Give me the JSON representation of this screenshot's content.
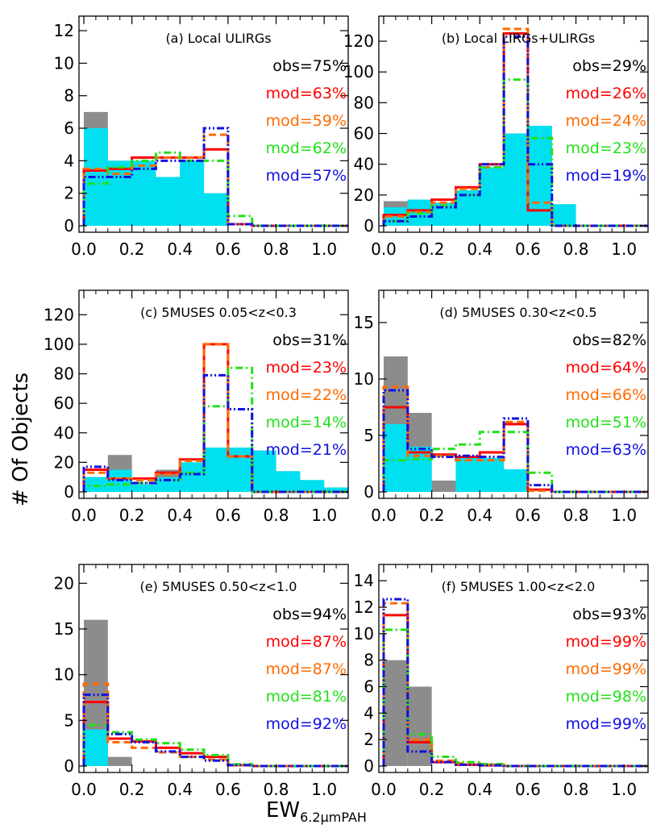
{
  "figure": {
    "ylabel": "# Of Objects",
    "xlabel_main": "EW",
    "xlabel_sub": "6.2μmPAH"
  },
  "colors": {
    "obs": "#8c8c8c",
    "sub": "#00e0f0",
    "red": "#ff0000",
    "orange": "#ff6a00",
    "green": "#22e01a",
    "blue": "#1010e0",
    "text": "#000000"
  },
  "chart_data": [
    {
      "type": "bar",
      "title": "(a) Local ULIRGs",
      "xlim": [
        0,
        1.1
      ],
      "ylim": [
        0,
        12.3
      ],
      "xticks": [
        0.0,
        0.2,
        0.4,
        0.6,
        0.8,
        1.0
      ],
      "xtick_labels": [
        "0.0",
        "0.2",
        "0.4",
        "0.6",
        "0.8",
        "1.0"
      ],
      "yticks": [
        0,
        2,
        4,
        6,
        8,
        10,
        12
      ],
      "ytick_labels": [
        "0",
        "2",
        "4",
        "6",
        "8",
        "10",
        "12"
      ],
      "bin_edges": [
        0.0,
        0.1,
        0.2,
        0.3,
        0.4,
        0.5,
        0.6,
        0.7,
        0.8,
        0.9,
        1.0,
        1.1
      ],
      "observed": [
        7,
        4,
        4,
        3,
        4,
        2,
        0,
        0,
        0,
        0,
        0
      ],
      "observed_subset": [
        6,
        4,
        4,
        3,
        4,
        2,
        0,
        0,
        0,
        0,
        0
      ],
      "models": [
        {
          "label": "mod=63%",
          "color": "red",
          "values": [
            3.4,
            3.5,
            4.2,
            4.2,
            4.2,
            4.7,
            0.1,
            0,
            0,
            0,
            0
          ]
        },
        {
          "label": "mod=59%",
          "color": "orange",
          "values": [
            3.5,
            3.2,
            3.7,
            4.2,
            4.2,
            5.6,
            0.1,
            0,
            0,
            0,
            0
          ]
        },
        {
          "label": "mod=62%",
          "color": "green",
          "values": [
            2.6,
            3.6,
            4.0,
            4.5,
            4.0,
            4.0,
            0.6,
            0,
            0,
            0,
            0
          ]
        },
        {
          "label": "mod=57%",
          "color": "blue",
          "values": [
            3.0,
            3.0,
            3.5,
            4.0,
            4.0,
            6.0,
            0.1,
            0,
            0,
            0,
            0
          ]
        }
      ],
      "obs_label": "obs=75%"
    },
    {
      "type": "bar",
      "title": "(b) Local LIRGs+ULIRGs",
      "xlim": [
        0,
        1.1
      ],
      "ylim": [
        0,
        130
      ],
      "xticks": [
        0.0,
        0.2,
        0.4,
        0.6,
        0.8,
        1.0
      ],
      "xtick_labels": [
        "0.0",
        "0.2",
        "0.4",
        "0.6",
        "0.8",
        "1.0"
      ],
      "yticks": [
        0,
        20,
        40,
        60,
        80,
        100,
        120
      ],
      "ytick_labels": [
        "0",
        "20",
        "40",
        "60",
        "80",
        "100",
        "120"
      ],
      "bin_edges": [
        0.0,
        0.1,
        0.2,
        0.3,
        0.4,
        0.5,
        0.6,
        0.7,
        0.8,
        0.9,
        1.0,
        1.1
      ],
      "observed": [
        16,
        17,
        15,
        23,
        38,
        60,
        65,
        14,
        0,
        0,
        0
      ],
      "observed_subset": [
        12,
        17,
        15,
        23,
        38,
        60,
        65,
        14,
        0,
        0,
        0
      ],
      "models": [
        {
          "label": "mod=26%",
          "color": "red",
          "values": [
            7,
            10,
            17,
            25,
            40,
            125,
            10,
            0,
            0,
            0,
            0
          ]
        },
        {
          "label": "mod=24%",
          "color": "orange",
          "values": [
            6,
            9,
            15,
            24,
            38,
            128,
            15,
            0,
            0,
            0,
            0
          ]
        },
        {
          "label": "mod=23%",
          "color": "green",
          "values": [
            3,
            8,
            13,
            20,
            38,
            95,
            57,
            0,
            0,
            0,
            0
          ]
        },
        {
          "label": "mod=19%",
          "color": "blue",
          "values": [
            3,
            6,
            12,
            20,
            40,
            123,
            40,
            0,
            0,
            0,
            0
          ]
        }
      ],
      "obs_label": "obs=29%"
    },
    {
      "type": "bar",
      "title": "(c) 5MUSES 0.05<z<0.3",
      "xlim": [
        0,
        1.1
      ],
      "ylim": [
        0,
        130
      ],
      "xticks": [
        0.0,
        0.2,
        0.4,
        0.6,
        0.8,
        1.0
      ],
      "xtick_labels": [
        "0.0",
        "0.2",
        "0.4",
        "0.6",
        "0.8",
        "1.0"
      ],
      "yticks": [
        0,
        20,
        40,
        60,
        80,
        100,
        120
      ],
      "ytick_labels": [
        "0",
        "20",
        "40",
        "60",
        "80",
        "100",
        "120"
      ],
      "bin_edges": [
        0.0,
        0.1,
        0.2,
        0.3,
        0.4,
        0.5,
        0.6,
        0.7,
        0.8,
        0.9,
        1.0,
        1.1
      ],
      "observed": [
        10,
        25,
        5,
        15,
        20,
        30,
        30,
        28,
        14,
        8,
        3
      ],
      "observed_subset": [
        10,
        15,
        5,
        10,
        20,
        30,
        30,
        28,
        14,
        8,
        3
      ],
      "models": [
        {
          "label": "mod=23%",
          "color": "red",
          "values": [
            15,
            9,
            9,
            13,
            22,
            100,
            24,
            0,
            0,
            0,
            0
          ]
        },
        {
          "label": "mod=22%",
          "color": "orange",
          "values": [
            13,
            9,
            8,
            12,
            21,
            100,
            24,
            0,
            0,
            0,
            0
          ]
        },
        {
          "label": "mod=14%",
          "color": "green",
          "values": [
            4,
            5,
            6,
            8,
            13,
            58,
            84,
            0,
            0,
            0,
            0
          ]
        },
        {
          "label": "mod=21%",
          "color": "blue",
          "values": [
            17,
            8,
            6,
            8,
            12,
            79,
            56,
            0,
            0,
            0,
            0
          ]
        }
      ],
      "obs_label": "obs=31%"
    },
    {
      "type": "bar",
      "title": "(d) 5MUSES 0.30<z<0.5",
      "xlim": [
        0,
        1.1
      ],
      "ylim": [
        0,
        17
      ],
      "xticks": [
        0.0,
        0.2,
        0.4,
        0.6,
        0.8,
        1.0
      ],
      "xtick_labels": [
        "0.0",
        "0.2",
        "0.4",
        "0.6",
        "0.8",
        "1.0"
      ],
      "yticks": [
        0,
        5,
        10,
        15
      ],
      "ytick_labels": [
        "0",
        "5",
        "10",
        "15"
      ],
      "bin_edges": [
        0.0,
        0.1,
        0.2,
        0.3,
        0.4,
        0.5,
        0.6,
        0.7,
        0.8,
        0.9,
        1.0,
        1.1
      ],
      "observed": [
        12,
        7,
        1,
        3,
        3,
        2,
        0,
        0,
        0,
        0,
        0
      ],
      "observed_subset": [
        6,
        4,
        0,
        3,
        3,
        2,
        0,
        0,
        0,
        0,
        0
      ],
      "models": [
        {
          "label": "mod=64%",
          "color": "red",
          "values": [
            7.5,
            3.5,
            3.3,
            3.1,
            3.5,
            6.0,
            0.2,
            0,
            0,
            0,
            0
          ]
        },
        {
          "label": "mod=66%",
          "color": "orange",
          "values": [
            9.3,
            3.2,
            3.2,
            2.8,
            2.8,
            6.2,
            0.1,
            0,
            0,
            0,
            0
          ]
        },
        {
          "label": "mod=51%",
          "color": "green",
          "values": [
            2.8,
            2.9,
            3.8,
            4.2,
            5.3,
            5.3,
            1.7,
            0,
            0,
            0,
            0
          ]
        },
        {
          "label": "mod=63%",
          "color": "blue",
          "values": [
            9.0,
            3.8,
            3.1,
            3.2,
            3.1,
            6.5,
            0.6,
            0,
            0,
            0,
            0
          ]
        }
      ],
      "obs_label": "obs=82%"
    },
    {
      "type": "bar",
      "title": "(e) 5MUSES 0.50<z<1.0",
      "xlim": [
        0,
        1.1
      ],
      "ylim": [
        0,
        21
      ],
      "xticks": [
        0.0,
        0.2,
        0.4,
        0.6,
        0.8,
        1.0
      ],
      "xtick_labels": [
        "0.0",
        "0.2",
        "0.4",
        "0.6",
        "0.8",
        "1.0"
      ],
      "yticks": [
        0,
        5,
        10,
        15,
        20
      ],
      "ytick_labels": [
        "0",
        "5",
        "10",
        "15",
        "20"
      ],
      "bin_edges": [
        0.0,
        0.1,
        0.2,
        0.3,
        0.4,
        0.5,
        0.6,
        0.7,
        0.8,
        0.9,
        1.0,
        1.1
      ],
      "observed": [
        16,
        1,
        0,
        0,
        0,
        0,
        0,
        0,
        0,
        0,
        0
      ],
      "observed_subset": [
        4,
        0,
        0,
        0,
        0,
        0,
        0,
        0,
        0,
        0,
        0
      ],
      "models": [
        {
          "label": "mod=87%",
          "color": "red",
          "values": [
            7.0,
            3.0,
            2.7,
            2.0,
            1.4,
            1.0,
            0.1,
            0,
            0,
            0,
            0
          ]
        },
        {
          "label": "mod=87%",
          "color": "orange",
          "values": [
            9.0,
            2.6,
            2.0,
            1.5,
            1.0,
            0.7,
            0.1,
            0,
            0,
            0,
            0
          ]
        },
        {
          "label": "mod=81%",
          "color": "green",
          "values": [
            4.5,
            3.7,
            2.9,
            2.5,
            1.8,
            1.2,
            0.2,
            0,
            0,
            0,
            0
          ]
        },
        {
          "label": "mod=92%",
          "color": "blue",
          "values": [
            7.8,
            3.5,
            2.6,
            1.6,
            1.0,
            0.6,
            0.1,
            0,
            0,
            0,
            0
          ]
        }
      ],
      "obs_label": "obs=94%"
    },
    {
      "type": "bar",
      "title": "(f) 5MUSES 1.00<z<2.0",
      "xlim": [
        0,
        1.1
      ],
      "ylim": [
        0,
        14.5
      ],
      "xticks": [
        0.0,
        0.2,
        0.4,
        0.6,
        0.8,
        1.0
      ],
      "xtick_labels": [
        "0.0",
        "0.2",
        "0.4",
        "0.6",
        "0.8",
        "1.0"
      ],
      "yticks": [
        0,
        2,
        4,
        6,
        8,
        10,
        12,
        14
      ],
      "ytick_labels": [
        "0",
        "2",
        "4",
        "6",
        "8",
        "10",
        "12",
        "14"
      ],
      "bin_edges": [
        0.0,
        0.1,
        0.2,
        0.3,
        0.4,
        0.5,
        0.6,
        0.7,
        0.8,
        0.9,
        1.0,
        1.1
      ],
      "observed": [
        8,
        6,
        0,
        0,
        0,
        0,
        0,
        0,
        0,
        0,
        0
      ],
      "observed_subset": [
        0,
        0,
        0,
        0,
        0,
        0,
        0,
        0,
        0,
        0,
        0
      ],
      "models": [
        {
          "label": "mod=99%",
          "color": "red",
          "values": [
            11.4,
            1.8,
            0.3,
            0.1,
            0.05,
            0,
            0,
            0,
            0,
            0,
            0
          ]
        },
        {
          "label": "mod=99%",
          "color": "orange",
          "values": [
            12.3,
            2.0,
            0.4,
            0.2,
            0.1,
            0,
            0,
            0,
            0,
            0,
            0
          ]
        },
        {
          "label": "mod=98%",
          "color": "green",
          "values": [
            10.3,
            2.4,
            0.7,
            0.3,
            0.15,
            0,
            0,
            0,
            0,
            0,
            0
          ]
        },
        {
          "label": "mod=99%",
          "color": "blue",
          "values": [
            12.6,
            1.1,
            0.3,
            0.1,
            0.05,
            0,
            0,
            0,
            0,
            0,
            0
          ]
        }
      ],
      "obs_label": "obs=93%"
    }
  ]
}
